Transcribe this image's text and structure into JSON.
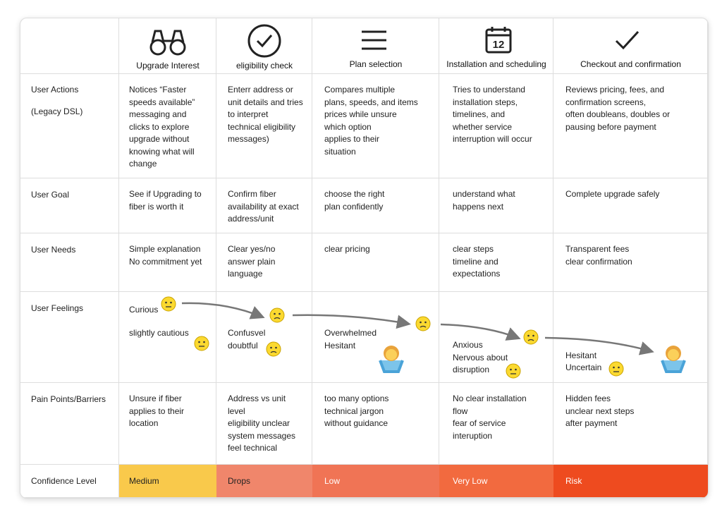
{
  "columns": [
    {
      "title": "Upgrade Interest"
    },
    {
      "title": "eligibility check"
    },
    {
      "title": "Plan selection"
    },
    {
      "title": "Installation and scheduling",
      "icon_text": "12"
    },
    {
      "title": "Checkout and confirmation"
    }
  ],
  "rows": [
    {
      "label": [
        "User Actions",
        "(Legacy DSL)"
      ],
      "cells": [
        [
          "Notices “Faster",
          "speeds available”",
          "messaging and",
          "clicks to explore",
          "upgrade without",
          "knowing what will",
          "change"
        ],
        [
          "Enterr address or",
          "unit details and tries",
          "to interpret",
          "technical eligibility",
          "messages)"
        ],
        [
          "Compares multiple",
          "plans, speeds, and items",
          "prices while unsure",
          "which option",
          "applies to their",
          "situation"
        ],
        [
          "Tries to understand",
          "installation steps,",
          "timelines, and",
          "whether service",
          "interruption will occur"
        ],
        [
          "Reviews pricing, fees, and",
          "confirmation screens,",
          "often doubleans, doubles or",
          "pausing before payment"
        ]
      ]
    },
    {
      "label": [
        "User Goal"
      ],
      "cells": [
        [
          "See if Upgrading to",
          "fiber is worth it"
        ],
        [
          "Confirm fiber",
          "availability at exact",
          "address/unit"
        ],
        [
          "choose the right",
          "plan confidently"
        ],
        [
          "understand what",
          "happens next"
        ],
        [
          "Complete upgrade safely"
        ]
      ]
    },
    {
      "label": [
        "User Needs"
      ],
      "cells": [
        [
          "Simple explanation",
          "No commitment yet"
        ],
        [
          "Clear yes/no",
          "answer plain",
          "language"
        ],
        [
          "clear pricing"
        ],
        [
          "clear steps",
          "timeline and",
          "expectations"
        ],
        [
          "Transparent fees",
          "clear confirmation"
        ]
      ]
    },
    {
      "label": [
        "User Feelings"
      ],
      "cells": [
        [
          "Curious",
          "slightly cautious"
        ],
        [
          "Confusvel",
          "doubtful"
        ],
        [
          "Overwhelmed",
          "Hesitant"
        ],
        [
          "Anxious",
          "Nervous about",
          "disruption"
        ],
        [
          "Hesitant",
          "Uncertain"
        ]
      ]
    },
    {
      "label": [
        "Pain Points/Barriers"
      ],
      "cells": [
        [
          "Unsure if fiber",
          "applies to their",
          "location"
        ],
        [
          "Address vs unit",
          "level",
          "eligibility unclear",
          "system messages",
          "feel technical"
        ],
        [
          "too many options",
          "technical jargon",
          "without guidance"
        ],
        [
          "No clear installation",
          "flow",
          "fear of service",
          "interuption"
        ],
        [
          "Hidden fees",
          "unclear next steps",
          "after payment"
        ]
      ]
    },
    {
      "label": [
        "Confidence Level"
      ],
      "cells": [
        [
          "Medium"
        ],
        [
          "Drops"
        ],
        [
          "Low"
        ],
        [
          "Very Low"
        ],
        [
          "Risk"
        ]
      ]
    }
  ]
}
